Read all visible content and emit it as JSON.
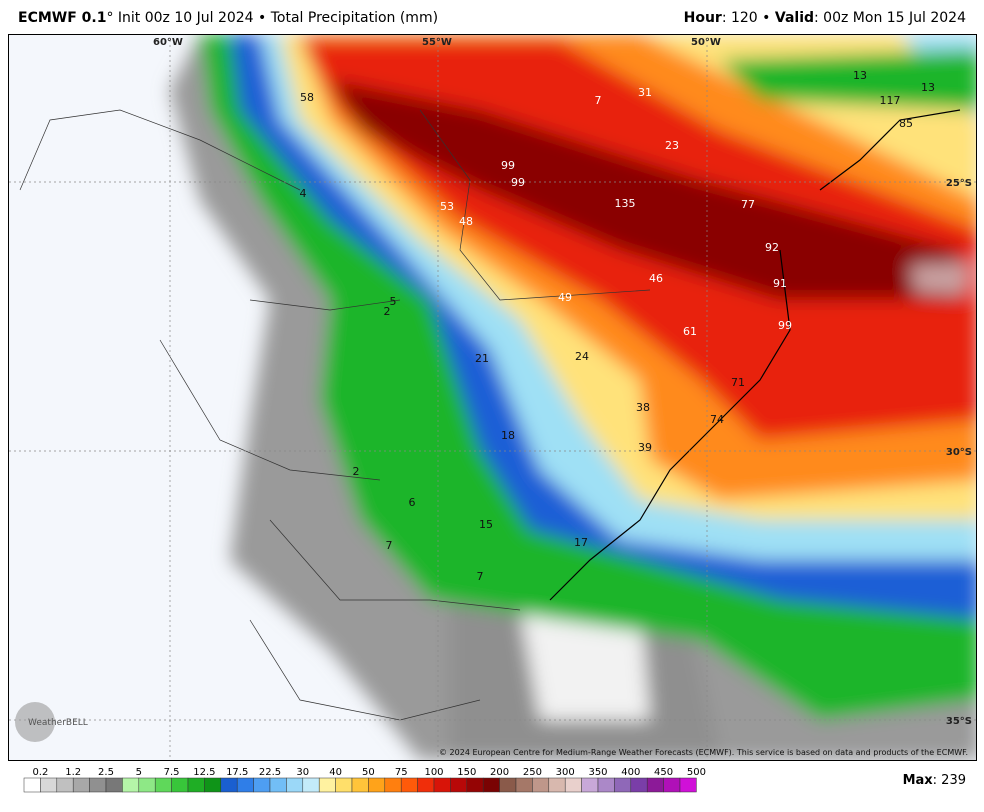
{
  "header": {
    "model": "ECMWF 0.1",
    "init": "° Init 00z 10 Jul 2024 • Total Precipitation (mm)",
    "hour_label": "Hour",
    "hour": ": 120 • ",
    "valid_label": "Valid",
    "valid": ": 00z Mon 15 Jul 2024"
  },
  "grid_labels": [
    "60°W",
    "55°W",
    "50°W",
    "25°S",
    "30°S",
    "35°S"
  ],
  "point_labels": [
    58,
    7,
    31,
    13,
    117,
    13,
    23,
    85,
    99,
    99,
    53,
    48,
    135,
    77,
    92,
    46,
    91,
    49,
    5,
    2,
    61,
    99,
    21,
    24,
    71,
    38,
    74,
    18,
    39,
    2,
    15,
    7,
    17,
    7,
    6,
    4
  ],
  "logo": "WeatherBELL",
  "copyright": "© 2024 European Centre for Medium-Range Weather Forecasts (ECMWF). This service is based on data and products of the ECMWF.",
  "colorbar": {
    "labels": [
      0.2,
      1.2,
      2.5,
      5,
      7.5,
      12.5,
      17.5,
      22.5,
      30,
      40,
      50,
      75,
      100,
      150,
      200,
      250,
      300,
      350,
      400,
      450,
      500
    ]
  },
  "max_label": "Max",
  "max": ": 239"
}
